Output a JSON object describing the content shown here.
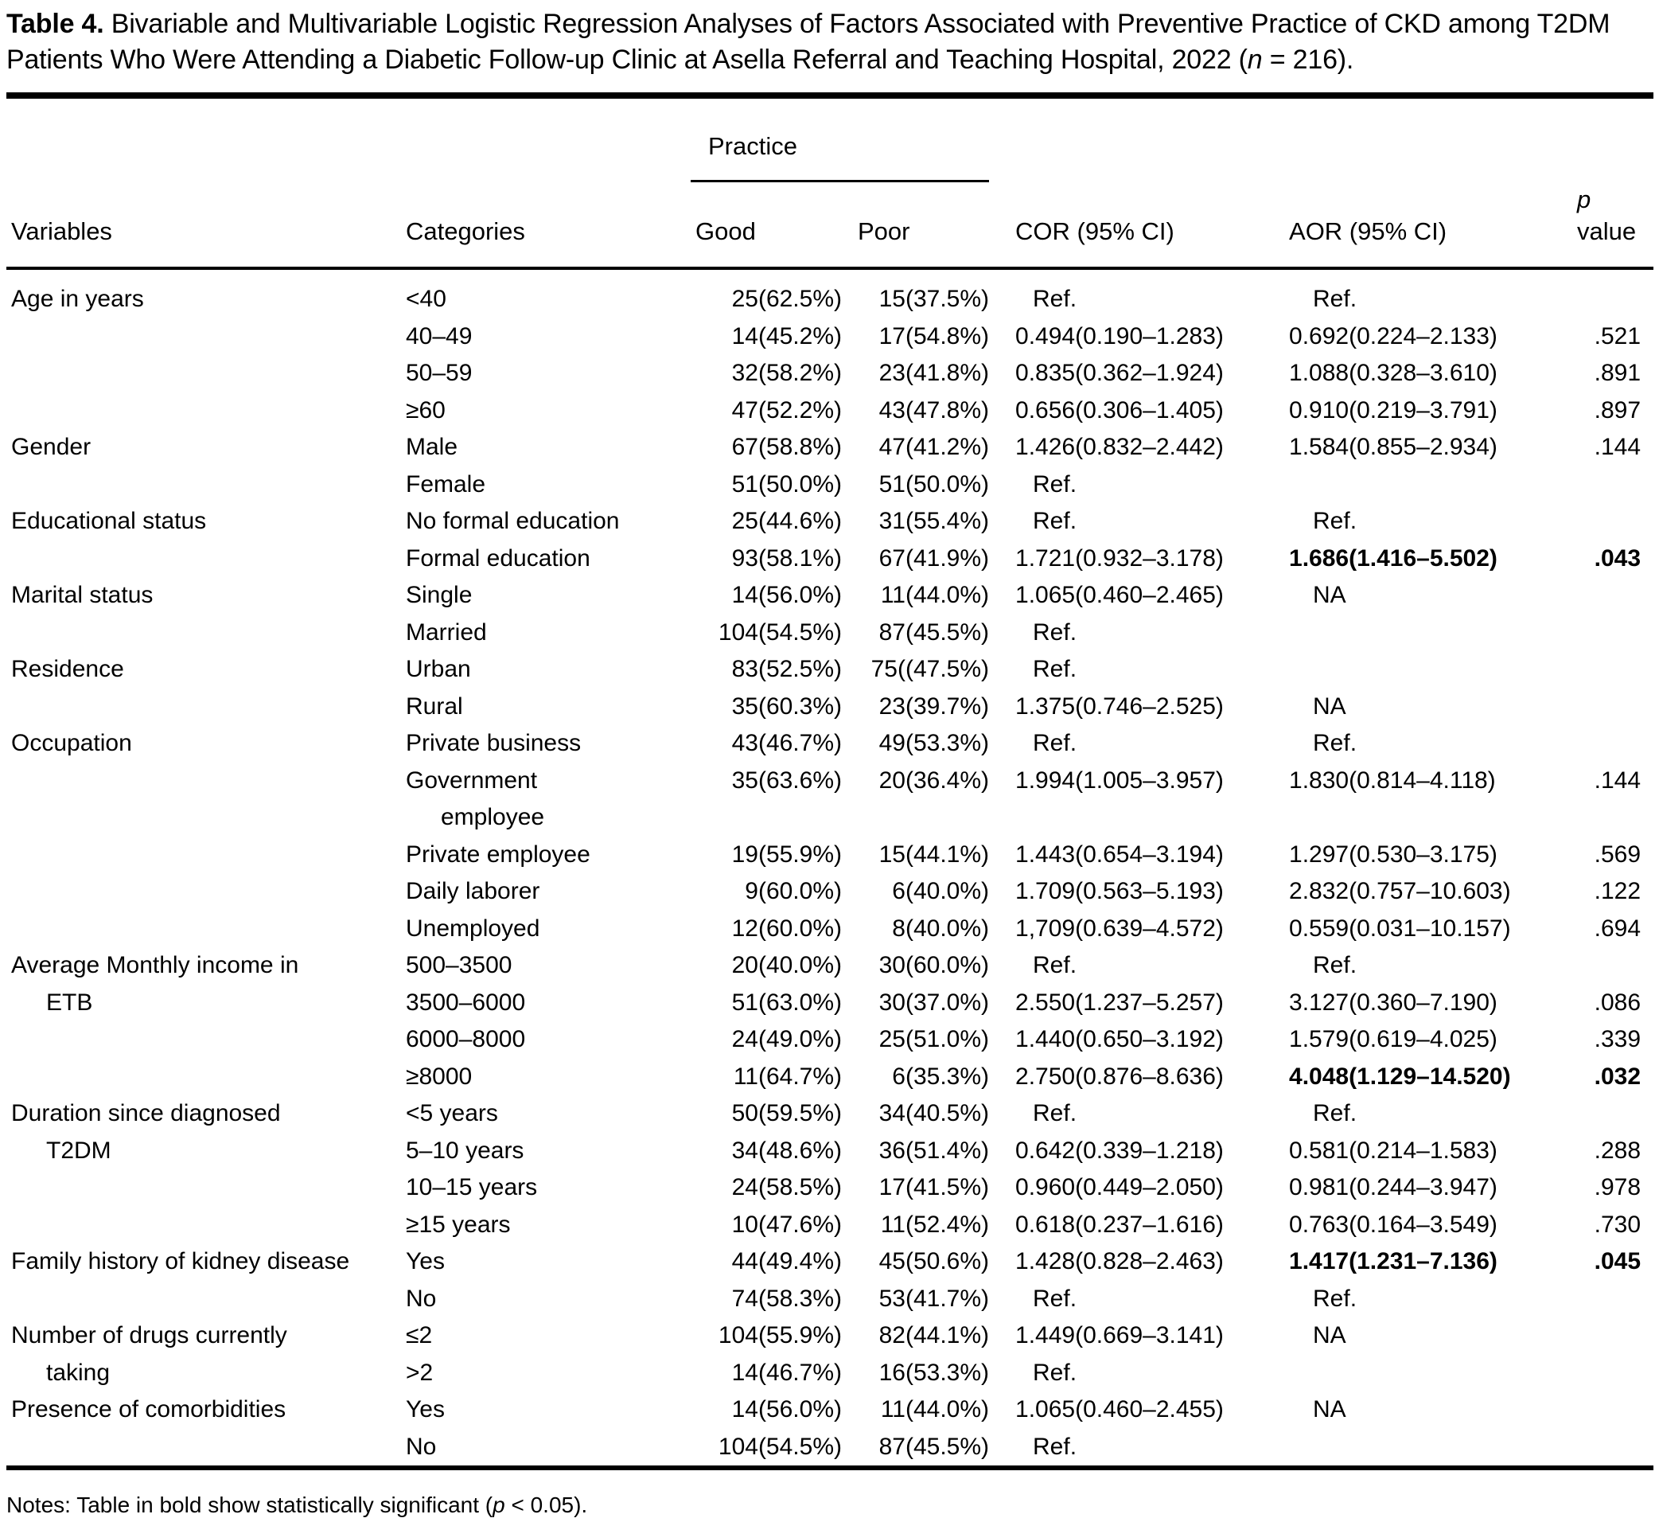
{
  "title": {
    "label": "Table 4.",
    "text": " Bivariable and Multivariable Logistic Regression Analyses of Factors Associated with Preventive Practice of CKD among T2DM Patients Who Were Attending a Diabetic Follow-up Clinic at Asella Referral and Teaching Hospital, 2022 (",
    "n": "n",
    "after_n": " = 216)."
  },
  "table": {
    "group_header": "Practice",
    "p_header": {
      "line1": "p",
      "line2": "value"
    },
    "columns": [
      {
        "key": "variable",
        "label": "Variables",
        "class": "col-var"
      },
      {
        "key": "category",
        "label": "Categories",
        "class": "col-cat"
      },
      {
        "key": "good",
        "label": "Good",
        "class": "col-good"
      },
      {
        "key": "poor",
        "label": "Poor",
        "class": "col-poor"
      },
      {
        "key": "cor",
        "label": "COR (95% CI)",
        "class": "col-cor"
      },
      {
        "key": "aor",
        "label": "AOR (95% CI)",
        "class": "col-aor"
      },
      {
        "key": "p",
        "label": "value",
        "class": "col-p"
      }
    ],
    "rows": [
      {
        "variable": "Age in years",
        "category": "<40",
        "good": "25(62.5%)",
        "poor": "15(37.5%)",
        "cor": "Ref.",
        "aor": "Ref.",
        "p": ""
      },
      {
        "variable": "",
        "category": "40–49",
        "good": "14(45.2%)",
        "poor": "17(54.8%)",
        "cor": "0.494(0.190–1.283)",
        "aor": "0.692(0.224–2.133)",
        "p": ".521"
      },
      {
        "variable": "",
        "category": "50–59",
        "good": "32(58.2%)",
        "poor": "23(41.8%)",
        "cor": "0.835(0.362–1.924)",
        "aor": "1.088(0.328–3.610)",
        "p": ".891"
      },
      {
        "variable": "",
        "category": "≥60",
        "good": "47(52.2%)",
        "poor": "43(47.8%)",
        "cor": "0.656(0.306–1.405)",
        "aor": "0.910(0.219–3.791)",
        "p": ".897"
      },
      {
        "variable": "Gender",
        "category": "Male",
        "good": "67(58.8%)",
        "poor": "47(41.2%)",
        "cor": "1.426(0.832–2.442)",
        "aor": "1.584(0.855–2.934)",
        "p": ".144"
      },
      {
        "variable": "",
        "category": "Female",
        "good": "51(50.0%)",
        "poor": "51(50.0%)",
        "cor": "Ref.",
        "aor": "",
        "p": ""
      },
      {
        "variable": "Educational status",
        "category": "No formal education",
        "good": "25(44.6%)",
        "poor": "31(55.4%)",
        "cor": "Ref.",
        "aor": "Ref.",
        "p": ""
      },
      {
        "variable": "",
        "category": "Formal education",
        "good": "93(58.1%)",
        "poor": "67(41.9%)",
        "cor": "1.721(0.932–3.178)",
        "aor": "1.686(1.416–5.502)",
        "p": ".043",
        "bold": [
          "aor",
          "p"
        ]
      },
      {
        "variable": "Marital status",
        "category": "Single",
        "good": "14(56.0%)",
        "poor": "11(44.0%)",
        "cor": "1.065(0.460–2.465)",
        "aor": "NA",
        "p": ""
      },
      {
        "variable": "",
        "category": "Married",
        "good": "104(54.5%)",
        "poor": "87(45.5%)",
        "cor": "Ref.",
        "aor": "",
        "p": ""
      },
      {
        "variable": "Residence",
        "category": "Urban",
        "good": "83(52.5%)",
        "poor": "75((47.5%)",
        "cor": "Ref.",
        "aor": "",
        "p": ""
      },
      {
        "variable": "",
        "category": "Rural",
        "good": "35(60.3%)",
        "poor": "23(39.7%)",
        "cor": "1.375(0.746–2.525)",
        "aor": "NA",
        "p": ""
      },
      {
        "variable": "Occupation",
        "category": "Private business",
        "good": "43(46.7%)",
        "poor": "49(53.3%)",
        "cor": "Ref.",
        "aor": "Ref.",
        "p": ""
      },
      {
        "variable": "",
        "category": "Government",
        "good": "35(63.6%)",
        "poor": "20(36.4%)",
        "cor": "1.994(1.005–3.957)",
        "aor": "1.830(0.814–4.118)",
        "p": ".144"
      },
      {
        "variable": "",
        "category": "employee",
        "good": "",
        "poor": "",
        "cor": "",
        "aor": "",
        "p": "",
        "indent_cat": true
      },
      {
        "variable": "",
        "category": "Private employee",
        "good": "19(55.9%)",
        "poor": "15(44.1%)",
        "cor": "1.443(0.654–3.194)",
        "aor": "1.297(0.530–3.175)",
        "p": ".569"
      },
      {
        "variable": "",
        "category": "Daily laborer",
        "good": "9(60.0%)",
        "poor": "6(40.0%)",
        "cor": "1.709(0.563–5.193)",
        "aor": "2.832(0.757–10.603)",
        "p": ".122"
      },
      {
        "variable": "",
        "category": "Unemployed",
        "good": "12(60.0%)",
        "poor": "8(40.0%)",
        "cor": "1,709(0.639–4.572)",
        "aor": "0.559(0.031–10.157)",
        "p": ".694"
      },
      {
        "variable": "Average Monthly income in",
        "category": "500–3500",
        "good": "20(40.0%)",
        "poor": "30(60.0%)",
        "cor": "Ref.",
        "aor": "Ref.",
        "p": ""
      },
      {
        "variable": "ETB",
        "category": "3500–6000",
        "good": "51(63.0%)",
        "poor": "30(37.0%)",
        "cor": "2.550(1.237–5.257)",
        "aor": "3.127(0.360–7.190)",
        "p": ".086",
        "indent_var": true
      },
      {
        "variable": "",
        "category": "6000–8000",
        "good": "24(49.0%)",
        "poor": "25(51.0%)",
        "cor": "1.440(0.650–3.192)",
        "aor": "1.579(0.619–4.025)",
        "p": ".339"
      },
      {
        "variable": "",
        "category": "≥8000",
        "good": "11(64.7%)",
        "poor": "6(35.3%)",
        "cor": "2.750(0.876–8.636)",
        "aor": "4.048(1.129–14.520)",
        "p": ".032",
        "bold": [
          "aor",
          "p"
        ]
      },
      {
        "variable": "Duration since diagnosed",
        "category": "<5 years",
        "good": "50(59.5%)",
        "poor": "34(40.5%)",
        "cor": "Ref.",
        "aor": "Ref.",
        "p": ""
      },
      {
        "variable": "T2DM",
        "category": "5–10 years",
        "good": "34(48.6%)",
        "poor": "36(51.4%)",
        "cor": "0.642(0.339–1.218)",
        "aor": "0.581(0.214–1.583)",
        "p": ".288",
        "indent_var": true
      },
      {
        "variable": "",
        "category": "10–15 years",
        "good": "24(58.5%)",
        "poor": "17(41.5%)",
        "cor": "0.960(0.449–2.050)",
        "aor": "0.981(0.244–3.947)",
        "p": ".978"
      },
      {
        "variable": "",
        "category": "≥15 years",
        "good": "10(47.6%)",
        "poor": "11(52.4%)",
        "cor": "0.618(0.237–1.616)",
        "aor": "0.763(0.164–3.549)",
        "p": ".730"
      },
      {
        "variable": "Family history of kidney disease",
        "category": "Yes",
        "good": "44(49.4%)",
        "poor": "45(50.6%)",
        "cor": "1.428(0.828–2.463)",
        "aor": "1.417(1.231–7.136)",
        "p": ".045",
        "bold": [
          "aor",
          "p"
        ]
      },
      {
        "variable": "",
        "category": "No",
        "good": "74(58.3%)",
        "poor": "53(41.7%)",
        "cor": "Ref.",
        "aor": "Ref.",
        "p": ""
      },
      {
        "variable": "Number of drugs currently",
        "category": "≤2",
        "good": "104(55.9%)",
        "poor": "82(44.1%)",
        "cor": "1.449(0.669–3.141)",
        "aor": "NA",
        "p": ""
      },
      {
        "variable": "taking",
        "category": ">2",
        "good": "14(46.7%)",
        "poor": "16(53.3%)",
        "cor": "Ref.",
        "aor": "",
        "p": "",
        "indent_var": true
      },
      {
        "variable": "Presence of comorbidities",
        "category": "Yes",
        "good": "14(56.0%)",
        "poor": "11(44.0%)",
        "cor": "1.065(0.460–2.455)",
        "aor": "NA",
        "p": ""
      },
      {
        "variable": "",
        "category": "No",
        "good": "104(54.5%)",
        "poor": "87(45.5%)",
        "cor": "Ref.",
        "aor": "",
        "p": ""
      }
    ]
  },
  "notes": {
    "prefix": "Notes: Table in bold show statistically significant (",
    "p": "p",
    "suffix": " < 0.05)."
  }
}
